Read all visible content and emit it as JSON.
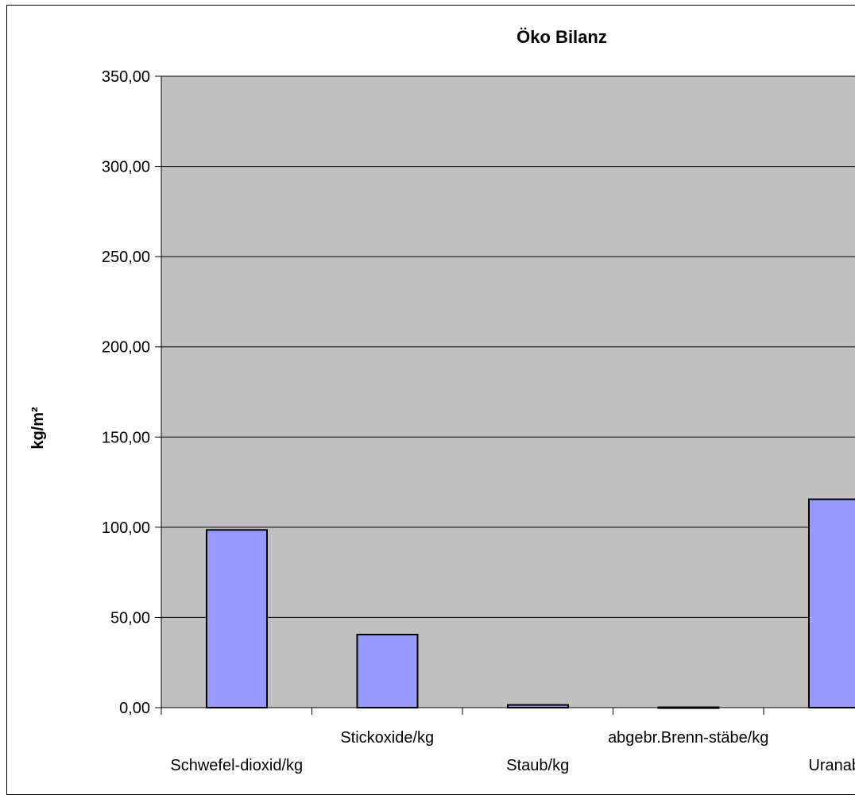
{
  "chart_data": {
    "type": "bar",
    "title": "Öko Bilanz",
    "xlabel": "",
    "ylabel": "kg/m²",
    "ylim": [
      0,
      350
    ],
    "yticks": [
      "0,00",
      "50,00",
      "100,00",
      "150,00",
      "200,00",
      "250,00",
      "300,00",
      "350,00"
    ],
    "categories": [
      "Schwefel-dioxid/kg",
      "Stickoxide/kg",
      "Staub/kg",
      "abgebr.Brenn-stäbe/kg",
      "Uranabb"
    ],
    "values": [
      98.5,
      40.5,
      1.5,
      0.2,
      115.5
    ],
    "grid": true,
    "legend": "none",
    "colors": {
      "plot_bg": "#c0c0c0",
      "bar_fill": "#9999ff",
      "bar_stroke": "#000000",
      "grid": "#000000"
    }
  }
}
